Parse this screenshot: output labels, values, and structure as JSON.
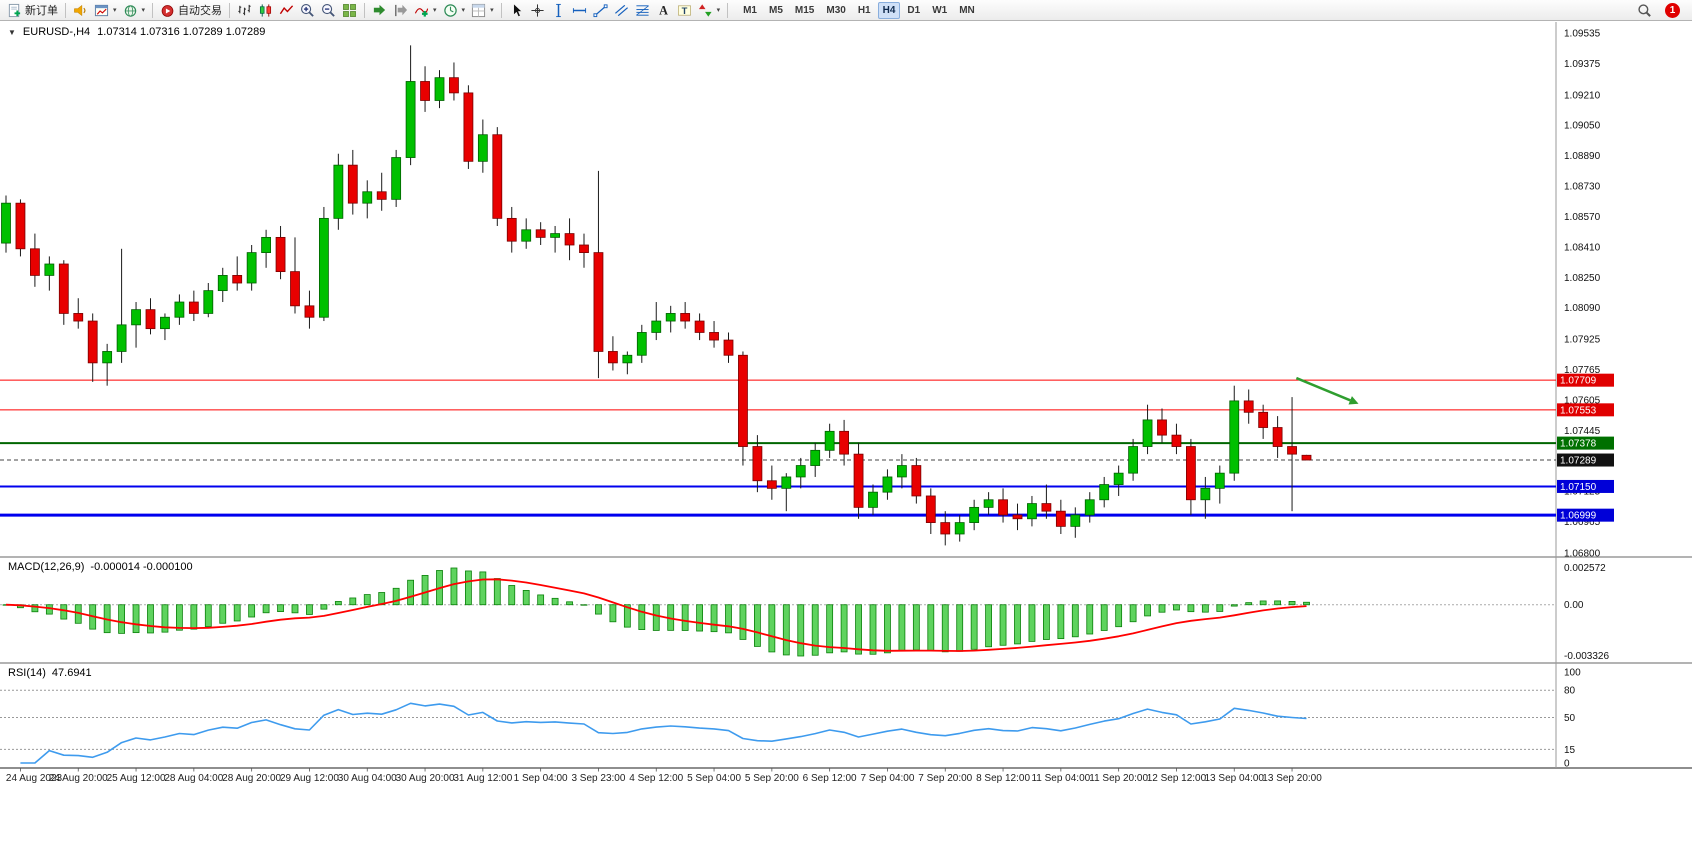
{
  "window": {
    "badge_count": "1"
  },
  "toolbar": {
    "items": [
      {
        "name": "new-order",
        "icon": "new-order",
        "label": "新订单",
        "dropdown": false
      },
      {
        "type": "sep"
      },
      {
        "name": "sound-alert",
        "icon": "horn"
      },
      {
        "name": "new-chart",
        "icon": "chart-window",
        "dropdown": true
      },
      {
        "name": "profiles",
        "icon": "globe",
        "dropdown": true
      },
      {
        "type": "sep"
      },
      {
        "name": "auto-trading",
        "icon": "auto-trading",
        "label": "自动交易"
      },
      {
        "type": "sep"
      },
      {
        "name": "bar-chart-mode",
        "icon": "bars"
      },
      {
        "name": "candlestick-mode",
        "icon": "candles"
      },
      {
        "name": "line-chart-mode",
        "icon": "line"
      },
      {
        "name": "zoom-in",
        "icon": "zoom-in"
      },
      {
        "name": "zoom-out",
        "icon": "zoom-out"
      },
      {
        "name": "tile-windows",
        "icon": "tile"
      },
      {
        "type": "sep"
      },
      {
        "name": "auto-scroll",
        "icon": "auto-scroll"
      },
      {
        "name": "chart-shift",
        "icon": "chart-shift"
      },
      {
        "name": "indicators",
        "icon": "indicators",
        "dropdown": true
      },
      {
        "name": "periods",
        "icon": "clock",
        "dropdown": true
      },
      {
        "name": "templates",
        "icon": "template",
        "dropdown": true
      },
      {
        "type": "sep"
      },
      {
        "name": "cursor",
        "icon": "cursor"
      },
      {
        "name": "crosshair",
        "icon": "crosshair"
      },
      {
        "name": "vertical-line",
        "icon": "vline"
      },
      {
        "name": "horizontal-line",
        "icon": "hline"
      },
      {
        "name": "trend-line",
        "icon": "trend"
      },
      {
        "name": "equidistant-channel",
        "icon": "channel"
      },
      {
        "name": "fibonacci",
        "icon": "fibo"
      },
      {
        "name": "text",
        "icon": "text-a"
      },
      {
        "name": "text-label",
        "icon": "text-t"
      },
      {
        "name": "arrows",
        "icon": "arrows",
        "dropdown": true
      },
      {
        "type": "sep"
      }
    ],
    "timeframes": [
      "M1",
      "M5",
      "M15",
      "M30",
      "H1",
      "H4",
      "D1",
      "W1",
      "MN"
    ],
    "active_timeframe": "H4"
  },
  "chart": {
    "symbol_info": "EURUSD-,H4",
    "ohlc": "1.07314 1.07316 1.07289 1.07289"
  },
  "price_axis": {
    "ticks": [
      "1.09535",
      "1.09375",
      "1.09210",
      "1.09050",
      "1.08890",
      "1.08730",
      "1.08570",
      "1.08410",
      "1.08250",
      "1.08090",
      "1.07925",
      "1.07765",
      "1.07605",
      "1.07445",
      "1.07285",
      "1.07125",
      "1.06965",
      "1.06800"
    ]
  },
  "levels": [
    {
      "price": "1.07709",
      "value": 1.07709,
      "line_color": "#ff0000",
      "label_bg": "#e00000",
      "width": 1,
      "style": "solid"
    },
    {
      "price": "1.07553",
      "value": 1.07553,
      "line_color": "#ff0000",
      "label_bg": "#e00000",
      "width": 1,
      "style": "solid"
    },
    {
      "price": "1.07378",
      "value": 1.07378,
      "line_color": "#006600",
      "label_bg": "#007000",
      "width": 2,
      "style": "solid"
    },
    {
      "price": "1.07289",
      "value": 1.07289,
      "line_color": "#444444",
      "label_bg": "#111111",
      "width": 1,
      "style": "dashed"
    },
    {
      "price": "1.07150",
      "value": 1.0715,
      "line_color": "#0000ee",
      "label_bg": "#0000d8",
      "width": 2,
      "style": "solid"
    },
    {
      "price": "1.06999",
      "value": 1.06999,
      "line_color": "#0000ee",
      "label_bg": "#0000d8",
      "width": 3,
      "style": "solid"
    }
  ],
  "chart_data": {
    "type": "candlestick",
    "symbol": "EURUSD-",
    "timeframe": "H4",
    "y_range": [
      1.068,
      1.09535
    ],
    "up_color": "#00c000",
    "down_color": "#e80000",
    "wick_color": "#1a1a1a",
    "candles": [
      [
        1.0843,
        1.0868,
        1.0838,
        1.0864
      ],
      [
        1.0864,
        1.0866,
        1.0836,
        1.084
      ],
      [
        1.084,
        1.0848,
        1.082,
        1.0826
      ],
      [
        1.0826,
        1.0836,
        1.0818,
        1.0832
      ],
      [
        1.0832,
        1.0834,
        1.08,
        1.0806
      ],
      [
        1.0806,
        1.0814,
        1.0798,
        1.0802
      ],
      [
        1.0802,
        1.0806,
        1.077,
        1.078
      ],
      [
        1.078,
        1.079,
        1.0768,
        1.0786
      ],
      [
        1.0786,
        1.084,
        1.078,
        1.08
      ],
      [
        1.08,
        1.0812,
        1.0788,
        1.0808
      ],
      [
        1.0808,
        1.0814,
        1.0795,
        1.0798
      ],
      [
        1.0798,
        1.0806,
        1.0792,
        1.0804
      ],
      [
        1.0804,
        1.0816,
        1.08,
        1.0812
      ],
      [
        1.0812,
        1.0818,
        1.0802,
        1.0806
      ],
      [
        1.0806,
        1.0822,
        1.0804,
        1.0818
      ],
      [
        1.0818,
        1.083,
        1.0812,
        1.0826
      ],
      [
        1.0826,
        1.0836,
        1.0818,
        1.0822
      ],
      [
        1.0822,
        1.0842,
        1.0818,
        1.0838
      ],
      [
        1.0838,
        1.085,
        1.083,
        1.0846
      ],
      [
        1.0846,
        1.0852,
        1.0824,
        1.0828
      ],
      [
        1.0828,
        1.0846,
        1.0806,
        1.081
      ],
      [
        1.081,
        1.0818,
        1.0798,
        1.0804
      ],
      [
        1.0804,
        1.0862,
        1.0802,
        1.0856
      ],
      [
        1.0856,
        1.089,
        1.085,
        1.0884
      ],
      [
        1.0884,
        1.0892,
        1.0858,
        1.0864
      ],
      [
        1.0864,
        1.0876,
        1.0856,
        1.087
      ],
      [
        1.087,
        1.088,
        1.086,
        1.0866
      ],
      [
        1.0866,
        1.0892,
        1.0862,
        1.0888
      ],
      [
        1.0888,
        1.0947,
        1.0884,
        1.0928
      ],
      [
        1.0928,
        1.0936,
        1.0912,
        1.0918
      ],
      [
        1.0918,
        1.0934,
        1.0914,
        1.093
      ],
      [
        1.093,
        1.0938,
        1.0918,
        1.0922
      ],
      [
        1.0922,
        1.0926,
        1.0882,
        1.0886
      ],
      [
        1.0886,
        1.0908,
        1.088,
        1.09
      ],
      [
        1.09,
        1.0904,
        1.0852,
        1.0856
      ],
      [
        1.0856,
        1.0862,
        1.0838,
        1.0844
      ],
      [
        1.0844,
        1.0856,
        1.084,
        1.085
      ],
      [
        1.085,
        1.0854,
        1.0842,
        1.0846
      ],
      [
        1.0846,
        1.0852,
        1.0838,
        1.0848
      ],
      [
        1.0848,
        1.0856,
        1.0834,
        1.0842
      ],
      [
        1.0842,
        1.0848,
        1.083,
        1.0838
      ],
      [
        1.0838,
        1.0881,
        1.0772,
        1.0786
      ],
      [
        1.0786,
        1.0794,
        1.0776,
        1.078
      ],
      [
        1.078,
        1.0786,
        1.0774,
        1.0784
      ],
      [
        1.0784,
        1.08,
        1.078,
        1.0796
      ],
      [
        1.0796,
        1.0812,
        1.0792,
        1.0802
      ],
      [
        1.0802,
        1.081,
        1.0796,
        1.0806
      ],
      [
        1.0806,
        1.0812,
        1.0798,
        1.0802
      ],
      [
        1.0802,
        1.0806,
        1.0792,
        1.0796
      ],
      [
        1.0796,
        1.0802,
        1.0788,
        1.0792
      ],
      [
        1.0792,
        1.0796,
        1.078,
        1.0784
      ],
      [
        1.0784,
        1.0786,
        1.0726,
        1.0736
      ],
      [
        1.0736,
        1.0742,
        1.0712,
        1.0718
      ],
      [
        1.0718,
        1.0726,
        1.0708,
        1.0714
      ],
      [
        1.0714,
        1.0722,
        1.0702,
        1.072
      ],
      [
        1.072,
        1.073,
        1.0714,
        1.0726
      ],
      [
        1.0726,
        1.0738,
        1.072,
        1.0734
      ],
      [
        1.0734,
        1.0748,
        1.073,
        1.0744
      ],
      [
        1.0744,
        1.075,
        1.0726,
        1.0732
      ],
      [
        1.0732,
        1.0738,
        1.0698,
        1.0704
      ],
      [
        1.0704,
        1.0716,
        1.07,
        1.0712
      ],
      [
        1.0712,
        1.0724,
        1.0708,
        1.072
      ],
      [
        1.072,
        1.0732,
        1.0714,
        1.0726
      ],
      [
        1.0726,
        1.073,
        1.0706,
        1.071
      ],
      [
        1.071,
        1.0714,
        1.069,
        1.0696
      ],
      [
        1.0696,
        1.0702,
        1.0684,
        1.069
      ],
      [
        1.069,
        1.07,
        1.0686,
        1.0696
      ],
      [
        1.0696,
        1.0708,
        1.0692,
        1.0704
      ],
      [
        1.0704,
        1.0712,
        1.07,
        1.0708
      ],
      [
        1.0708,
        1.0714,
        1.0696,
        1.07
      ],
      [
        1.07,
        1.0706,
        1.0692,
        1.0698
      ],
      [
        1.0698,
        1.071,
        1.0694,
        1.0706
      ],
      [
        1.0706,
        1.0716,
        1.0698,
        1.0702
      ],
      [
        1.0702,
        1.0708,
        1.069,
        1.0694
      ],
      [
        1.0694,
        1.0704,
        1.0688,
        1.07
      ],
      [
        1.07,
        1.0712,
        1.0696,
        1.0708
      ],
      [
        1.0708,
        1.072,
        1.0704,
        1.0716
      ],
      [
        1.0716,
        1.0726,
        1.071,
        1.0722
      ],
      [
        1.0722,
        1.074,
        1.0718,
        1.0736
      ],
      [
        1.0736,
        1.0758,
        1.0732,
        1.075
      ],
      [
        1.075,
        1.0756,
        1.0738,
        1.0742
      ],
      [
        1.0742,
        1.0748,
        1.0732,
        1.0736
      ],
      [
        1.0736,
        1.074,
        1.07,
        1.0708
      ],
      [
        1.0708,
        1.072,
        1.0698,
        1.0714
      ],
      [
        1.0714,
        1.0726,
        1.0706,
        1.0722
      ],
      [
        1.0722,
        1.0768,
        1.0718,
        1.076
      ],
      [
        1.076,
        1.0766,
        1.0748,
        1.0754
      ],
      [
        1.0754,
        1.0758,
        1.074,
        1.0746
      ],
      [
        1.0746,
        1.0752,
        1.073,
        1.0736
      ],
      [
        1.0736,
        1.0762,
        1.0702,
        1.0732
      ],
      [
        1.07314,
        1.07316,
        1.07289,
        1.07289
      ]
    ],
    "annotations": [
      {
        "type": "arrow",
        "from_bar": 89.3,
        "from_price": 1.0772,
        "to_bar": 93.6,
        "to_price": 1.07585,
        "color": "#2f9e2f"
      }
    ],
    "indicators": [
      {
        "name": "MACD",
        "params": [
          12,
          26,
          9
        ],
        "display_values": [
          "-0.000014",
          "-0.000100"
        ]
      },
      {
        "name": "RSI",
        "params": [
          14
        ],
        "display_value": "47.6941"
      }
    ]
  },
  "macd": {
    "label": "MACD(12,26,9)",
    "values": "-0.000014 -0.000100",
    "axis_max": "0.002572",
    "axis_zero": "0.00",
    "axis_min": "-0.003326",
    "histogram_color": "#5fd35f",
    "signal_color": "#ff0000"
  },
  "rsi": {
    "label": "RSI(14)",
    "value": "47.6941",
    "axis": [
      "100",
      "80",
      "50",
      "15",
      "0"
    ],
    "levels": [
      80,
      50,
      15
    ],
    "line_color": "#3e9bee"
  },
  "time_axis": {
    "labels": [
      "24 Aug 2023",
      "24 Aug 20:00",
      "25 Aug 12:00",
      "28 Aug 04:00",
      "28 Aug 20:00",
      "29 Aug 12:00",
      "30 Aug 04:00",
      "30 Aug 20:00",
      "31 Aug 12:00",
      "1 Sep 04:00",
      "3 Sep 23:00",
      "4 Sep 12:00",
      "5 Sep 04:00",
      "5 Sep 20:00",
      "6 Sep 12:00",
      "7 Sep 04:00",
      "7 Sep 20:00",
      "8 Sep 12:00",
      "11 Sep 04:00",
      "11 Sep 20:00",
      "12 Sep 12:00",
      "13 Sep 04:00",
      "13 Sep 20:00"
    ]
  }
}
